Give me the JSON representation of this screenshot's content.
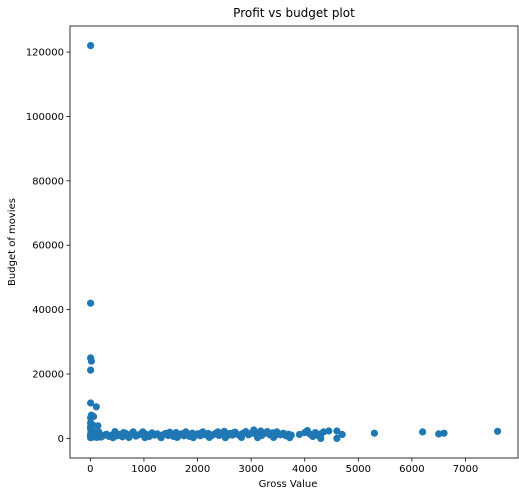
{
  "chart_data": {
    "type": "scatter",
    "title": "Profit vs budget plot",
    "xlabel": "Gross Value",
    "ylabel": "Budget of movies",
    "xlim": [
      -380,
      7980
    ],
    "ylim": [
      -6100,
      128100
    ],
    "xticks": [
      0,
      1000,
      2000,
      3000,
      4000,
      5000,
      6000,
      7000
    ],
    "yticks": [
      0,
      20000,
      40000,
      60000,
      80000,
      100000,
      120000
    ],
    "grid": false,
    "color": "#1f77b4",
    "points": [
      [
        5,
        122000
      ],
      [
        5,
        42000
      ],
      [
        5,
        25000
      ],
      [
        20,
        24000
      ],
      [
        5,
        21200
      ],
      [
        5,
        11000
      ],
      [
        110,
        9800
      ],
      [
        20,
        7200
      ],
      [
        60,
        6800
      ],
      [
        5,
        6400
      ],
      [
        5,
        4800
      ],
      [
        40,
        4200
      ],
      [
        5,
        3600
      ],
      [
        140,
        3900
      ],
      [
        5,
        3000
      ],
      [
        20,
        2600
      ],
      [
        60,
        2200
      ],
      [
        10,
        1800
      ],
      [
        30,
        1500
      ],
      [
        5,
        1200
      ],
      [
        80,
        1000
      ],
      [
        5,
        800
      ],
      [
        20,
        600
      ],
      [
        50,
        400
      ],
      [
        5,
        200
      ],
      [
        100,
        1200
      ],
      [
        150,
        700
      ],
      [
        200,
        400
      ],
      [
        250,
        900
      ],
      [
        300,
        1300
      ],
      [
        350,
        600
      ],
      [
        400,
        1000
      ],
      [
        450,
        1400
      ],
      [
        500,
        800
      ],
      [
        550,
        1200
      ],
      [
        600,
        500
      ],
      [
        650,
        1600
      ],
      [
        700,
        900
      ],
      [
        750,
        1300
      ],
      [
        800,
        2000
      ],
      [
        850,
        700
      ],
      [
        900,
        1100
      ],
      [
        950,
        1500
      ],
      [
        1000,
        800
      ],
      [
        1050,
        1200
      ],
      [
        1100,
        600
      ],
      [
        1150,
        1700
      ],
      [
        1200,
        1000
      ],
      [
        1250,
        1400
      ],
      [
        1300,
        700
      ],
      [
        1350,
        1100
      ],
      [
        1400,
        1500
      ],
      [
        1450,
        900
      ],
      [
        1500,
        1300
      ],
      [
        1550,
        600
      ],
      [
        1600,
        1800
      ],
      [
        1650,
        1000
      ],
      [
        1700,
        1400
      ],
      [
        1750,
        800
      ],
      [
        1800,
        1200
      ],
      [
        1850,
        600
      ],
      [
        1900,
        1600
      ],
      [
        1950,
        1000
      ],
      [
        2000,
        1400
      ],
      [
        2050,
        800
      ],
      [
        2100,
        2000
      ],
      [
        2150,
        1100
      ],
      [
        2200,
        1500
      ],
      [
        2250,
        700
      ],
      [
        2300,
        1200
      ],
      [
        2350,
        1700
      ],
      [
        2400,
        900
      ],
      [
        2450,
        1300
      ],
      [
        2500,
        2200
      ],
      [
        2550,
        800
      ],
      [
        2600,
        1500
      ],
      [
        2650,
        1000
      ],
      [
        2700,
        1900
      ],
      [
        2750,
        1200
      ],
      [
        2800,
        700
      ],
      [
        2850,
        1600
      ],
      [
        2900,
        2100
      ],
      [
        2950,
        1100
      ],
      [
        3000,
        1500
      ],
      [
        3050,
        2600
      ],
      [
        3100,
        1200
      ],
      [
        3150,
        1800
      ],
      [
        3200,
        900
      ],
      [
        3250,
        1500
      ],
      [
        3300,
        2100
      ],
      [
        3350,
        1100
      ],
      [
        3400,
        1700
      ],
      [
        3450,
        900
      ],
      [
        3500,
        1400
      ],
      [
        3550,
        1100
      ],
      [
        3600,
        1600
      ],
      [
        3650,
        800
      ],
      [
        3700,
        1300
      ],
      [
        3750,
        1000
      ],
      [
        3900,
        1200
      ],
      [
        4000,
        1800
      ],
      [
        4050,
        2400
      ],
      [
        4100,
        1300
      ],
      [
        4150,
        600
      ],
      [
        4200,
        1800
      ],
      [
        4250,
        900
      ],
      [
        4300,
        1400
      ],
      [
        4350,
        2000
      ],
      [
        4450,
        2300
      ],
      [
        4600,
        2300
      ],
      [
        4700,
        1200
      ],
      [
        4600,
        0
      ],
      [
        4300,
        0
      ],
      [
        5300,
        1600
      ],
      [
        6200,
        2000
      ],
      [
        6500,
        1400
      ],
      [
        6600,
        1600
      ],
      [
        7600,
        2200
      ],
      [
        120,
        300
      ],
      [
        420,
        200
      ],
      [
        720,
        300
      ],
      [
        1020,
        250
      ],
      [
        1320,
        200
      ],
      [
        1620,
        300
      ],
      [
        1920,
        250
      ],
      [
        2220,
        300
      ],
      [
        2520,
        200
      ],
      [
        2820,
        300
      ],
      [
        3120,
        250
      ],
      [
        3420,
        300
      ],
      [
        3720,
        250
      ],
      [
        160,
        1900
      ],
      [
        460,
        2100
      ],
      [
        620,
        1800
      ],
      [
        980,
        2000
      ],
      [
        1480,
        1900
      ],
      [
        1780,
        2000
      ],
      [
        2080,
        1800
      ],
      [
        2380,
        2000
      ],
      [
        2680,
        1800
      ],
      [
        3180,
        2300
      ],
      [
        3480,
        2000
      ]
    ]
  }
}
